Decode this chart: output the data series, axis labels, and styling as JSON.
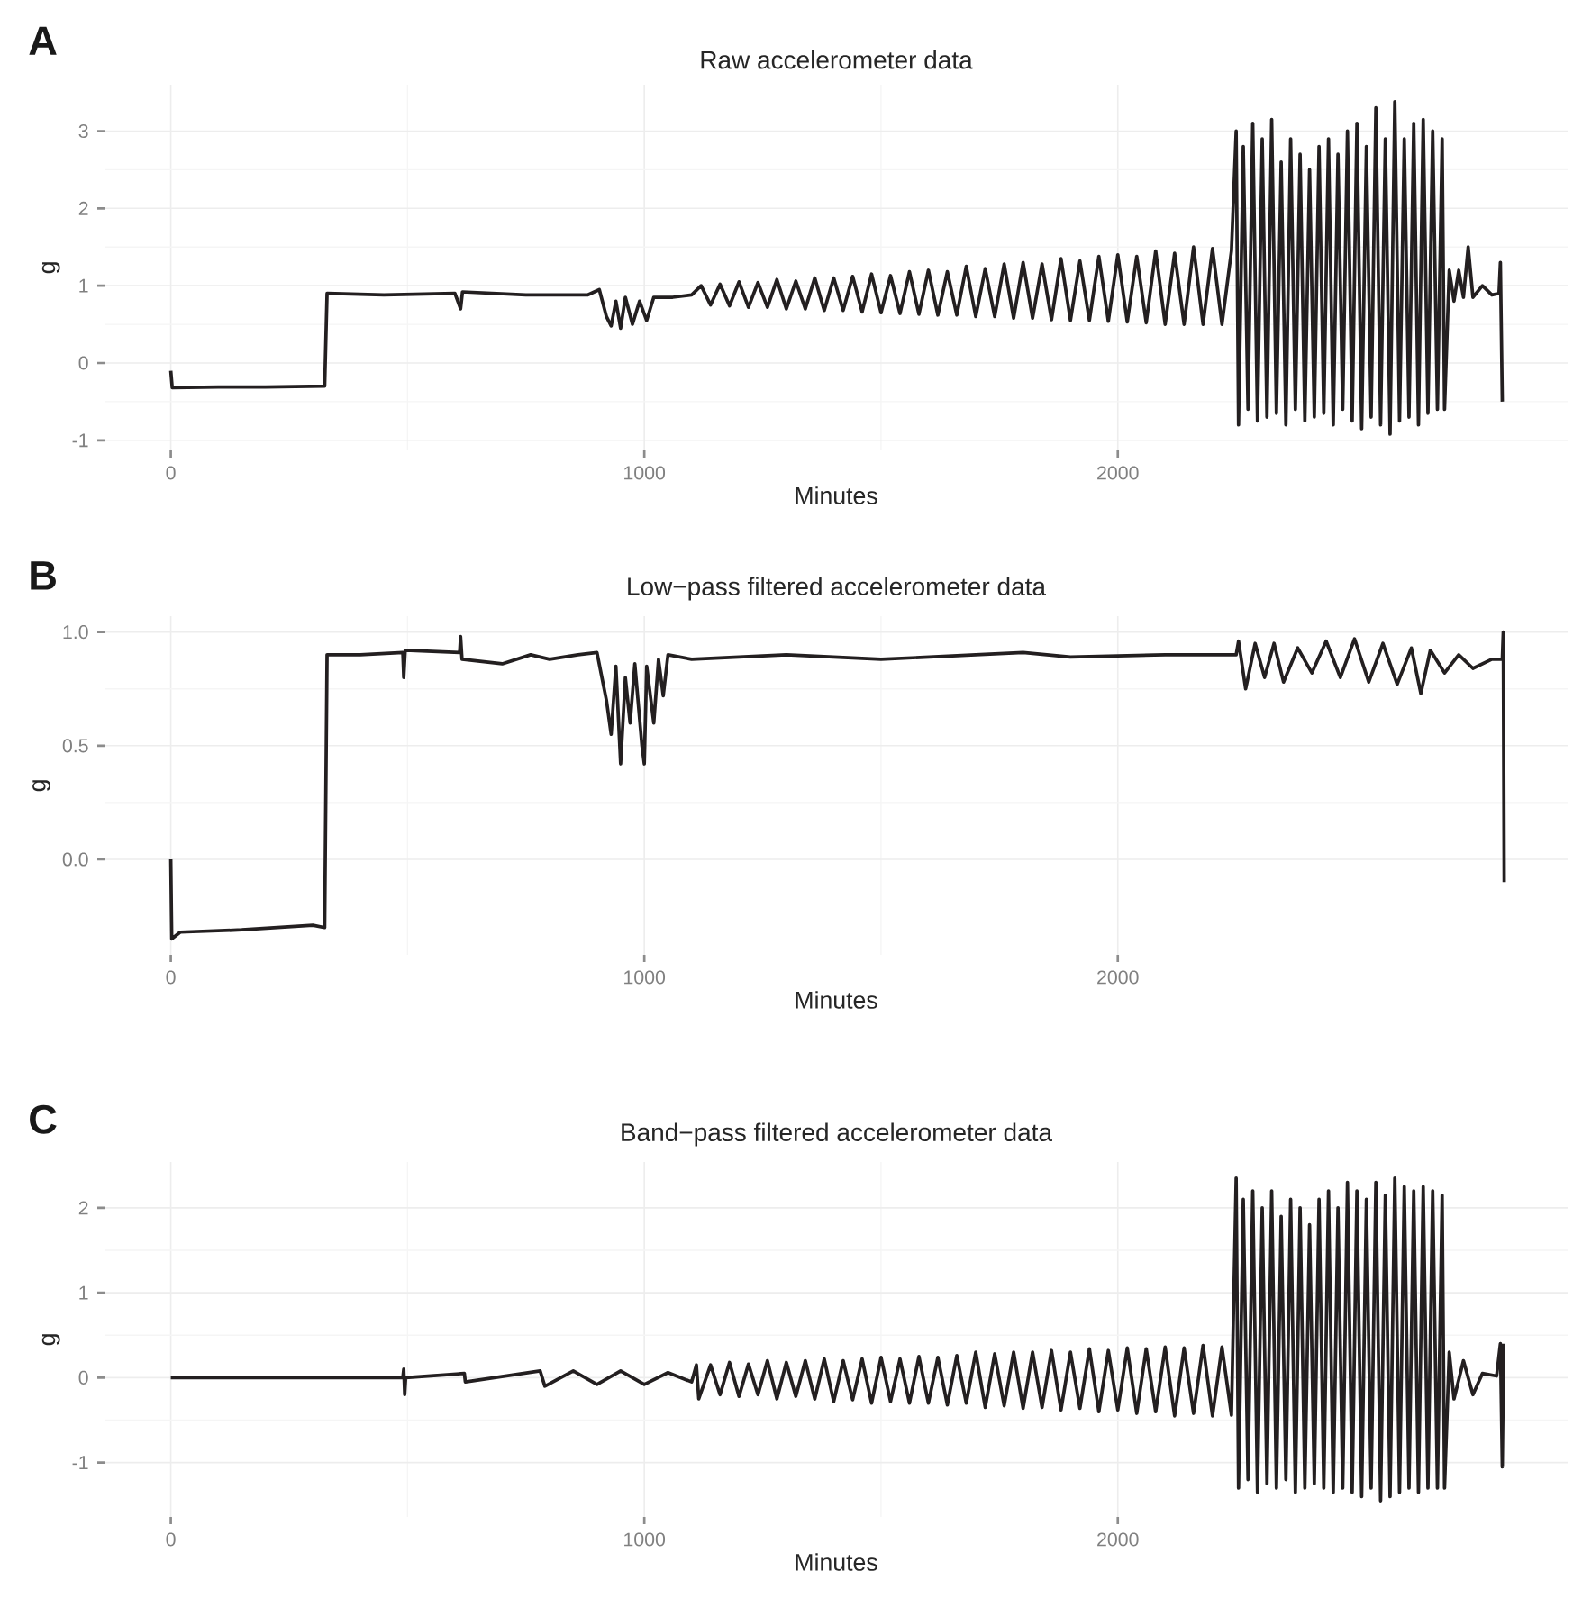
{
  "chart_data": [
    {
      "type": "line",
      "title": "Raw accelerometer data",
      "xlabel": "Minutes",
      "ylabel": "g",
      "annotations": [
        "A"
      ],
      "color": "#231f20",
      "grid": true,
      "xlim": [
        -140,
        2950
      ],
      "xticks": [
        0,
        1000,
        2000
      ],
      "ylim": [
        -1.13,
        3.6
      ],
      "yticks": [
        -1,
        0,
        1,
        2,
        3
      ],
      "x": [
        0,
        3,
        100,
        200,
        325,
        330,
        450,
        600,
        612,
        616,
        750,
        880,
        905,
        920,
        930,
        940,
        950,
        960,
        975,
        990,
        1005,
        1020,
        1060,
        1100,
        1120,
        1140,
        1160,
        1180,
        1200,
        1220,
        1240,
        1260,
        1280,
        1300,
        1320,
        1340,
        1360,
        1380,
        1400,
        1420,
        1440,
        1460,
        1480,
        1500,
        1520,
        1540,
        1560,
        1580,
        1600,
        1620,
        1640,
        1660,
        1680,
        1700,
        1720,
        1740,
        1760,
        1780,
        1800,
        1820,
        1840,
        1860,
        1880,
        1900,
        1920,
        1940,
        1960,
        1980,
        2000,
        2020,
        2040,
        2060,
        2080,
        2100,
        2120,
        2140,
        2160,
        2180,
        2200,
        2220,
        2240,
        2250,
        2255,
        2265,
        2275,
        2285,
        2295,
        2305,
        2315,
        2325,
        2335,
        2345,
        2355,
        2365,
        2375,
        2385,
        2395,
        2405,
        2415,
        2425,
        2435,
        2445,
        2455,
        2465,
        2475,
        2485,
        2495,
        2505,
        2515,
        2525,
        2535,
        2545,
        2555,
        2565,
        2575,
        2585,
        2595,
        2605,
        2615,
        2625,
        2635,
        2645,
        2655,
        2665,
        2675,
        2685,
        2690,
        2700,
        2710,
        2720,
        2730,
        2740,
        2750,
        2770,
        2790,
        2805,
        2808,
        2812
      ],
      "values": [
        -0.1,
        -0.32,
        -0.31,
        -0.31,
        -0.3,
        0.9,
        0.88,
        0.9,
        0.7,
        0.92,
        0.88,
        0.88,
        0.95,
        0.6,
        0.48,
        0.8,
        0.45,
        0.85,
        0.5,
        0.8,
        0.55,
        0.85,
        0.85,
        0.88,
        1.0,
        0.75,
        1.02,
        0.74,
        1.05,
        0.72,
        1.04,
        0.72,
        1.08,
        0.7,
        1.06,
        0.7,
        1.1,
        0.68,
        1.1,
        0.68,
        1.12,
        0.66,
        1.15,
        0.65,
        1.13,
        0.64,
        1.18,
        0.63,
        1.2,
        0.62,
        1.18,
        0.62,
        1.25,
        0.6,
        1.22,
        0.6,
        1.28,
        0.58,
        1.3,
        0.58,
        1.28,
        0.56,
        1.35,
        0.55,
        1.32,
        0.55,
        1.38,
        0.54,
        1.4,
        0.53,
        1.38,
        0.52,
        1.45,
        0.5,
        1.42,
        0.5,
        1.5,
        0.5,
        1.48,
        0.5,
        1.45,
        3.0,
        -0.8,
        2.8,
        -0.6,
        3.1,
        -0.75,
        2.9,
        -0.7,
        3.15,
        -0.65,
        2.6,
        -0.8,
        2.9,
        -0.6,
        2.7,
        -0.75,
        2.5,
        -0.7,
        2.8,
        -0.65,
        2.9,
        -0.8,
        2.7,
        -0.6,
        3.0,
        -0.75,
        3.1,
        -0.85,
        2.8,
        -0.7,
        3.3,
        -0.8,
        2.9,
        -0.92,
        3.38,
        -0.75,
        2.9,
        -0.7,
        3.1,
        -0.8,
        3.15,
        -0.65,
        3.0,
        -0.6,
        2.9,
        -0.6,
        1.2,
        0.8,
        1.2,
        0.85,
        1.5,
        0.85,
        1.0,
        0.88,
        0.9,
        1.3,
        -0.5
      ]
    },
    {
      "type": "line",
      "title": "Low−pass filtered accelerometer data",
      "xlabel": "Minutes",
      "ylabel": "g",
      "annotations": [
        "B"
      ],
      "color": "#231f20",
      "grid": true,
      "xlim": [
        -140,
        2950
      ],
      "xticks": [
        0,
        1000,
        2000
      ],
      "ylim": [
        -0.42,
        1.07
      ],
      "yticks": [
        {
          "value": 0,
          "label": "0.0"
        },
        {
          "value": 0.5,
          "label": "0.5"
        },
        {
          "value": 1,
          "label": "1.0"
        }
      ],
      "x": [
        0,
        2,
        20,
        150,
        300,
        325,
        330,
        400,
        490,
        492,
        495,
        610,
        612,
        615,
        700,
        760,
        800,
        860,
        900,
        920,
        930,
        940,
        950,
        960,
        970,
        980,
        995,
        1000,
        1005,
        1020,
        1030,
        1040,
        1050,
        1100,
        1300,
        1500,
        1700,
        1800,
        1900,
        2100,
        2250,
        2255,
        2270,
        2290,
        2310,
        2330,
        2350,
        2380,
        2410,
        2440,
        2470,
        2500,
        2530,
        2560,
        2590,
        2620,
        2640,
        2660,
        2690,
        2720,
        2750,
        2790,
        2812,
        2814,
        2816
      ],
      "values": [
        0,
        -0.35,
        -0.32,
        -0.31,
        -0.29,
        -0.3,
        0.9,
        0.9,
        0.91,
        0.8,
        0.92,
        0.91,
        0.98,
        0.88,
        0.86,
        0.9,
        0.88,
        0.9,
        0.91,
        0.7,
        0.55,
        0.85,
        0.42,
        0.8,
        0.6,
        0.86,
        0.5,
        0.42,
        0.85,
        0.6,
        0.88,
        0.72,
        0.9,
        0.88,
        0.9,
        0.88,
        0.9,
        0.91,
        0.89,
        0.9,
        0.9,
        0.96,
        0.75,
        0.95,
        0.8,
        0.95,
        0.78,
        0.93,
        0.82,
        0.96,
        0.8,
        0.97,
        0.78,
        0.95,
        0.77,
        0.93,
        0.73,
        0.92,
        0.82,
        0.9,
        0.84,
        0.88,
        0.88,
        1.0,
        -0.1
      ]
    },
    {
      "type": "line",
      "title": "Band−pass filtered accelerometer data",
      "xlabel": "Minutes",
      "ylabel": "g",
      "annotations": [
        "C"
      ],
      "color": "#231f20",
      "grid": true,
      "xlim": [
        -140,
        2950
      ],
      "xticks": [
        0,
        1000,
        2000
      ],
      "ylim": [
        -1.64,
        2.54
      ],
      "yticks": [
        -1,
        0,
        1,
        2
      ],
      "x": [
        0,
        300,
        490,
        492,
        494,
        496,
        620,
        622,
        780,
        790,
        850,
        900,
        950,
        1000,
        1050,
        1100,
        1110,
        1115,
        1140,
        1160,
        1180,
        1200,
        1220,
        1240,
        1260,
        1280,
        1300,
        1320,
        1340,
        1360,
        1380,
        1400,
        1420,
        1440,
        1460,
        1480,
        1500,
        1520,
        1540,
        1560,
        1580,
        1600,
        1620,
        1640,
        1660,
        1680,
        1700,
        1720,
        1740,
        1760,
        1780,
        1800,
        1820,
        1840,
        1860,
        1880,
        1900,
        1920,
        1940,
        1960,
        1980,
        2000,
        2020,
        2040,
        2060,
        2080,
        2100,
        2120,
        2140,
        2160,
        2180,
        2200,
        2220,
        2240,
        2250,
        2255,
        2265,
        2275,
        2285,
        2295,
        2305,
        2315,
        2325,
        2335,
        2345,
        2355,
        2365,
        2375,
        2385,
        2395,
        2405,
        2415,
        2425,
        2435,
        2445,
        2455,
        2465,
        2475,
        2485,
        2495,
        2505,
        2515,
        2525,
        2535,
        2545,
        2555,
        2565,
        2575,
        2585,
        2595,
        2605,
        2615,
        2625,
        2635,
        2645,
        2655,
        2665,
        2675,
        2685,
        2690,
        2700,
        2710,
        2730,
        2750,
        2770,
        2800,
        2808,
        2812,
        2815
      ],
      "values": [
        0,
        0,
        0,
        0.1,
        -0.2,
        0,
        0.05,
        -0.05,
        0.08,
        -0.1,
        0.08,
        -0.08,
        0.08,
        -0.08,
        0.06,
        -0.05,
        0.15,
        -0.25,
        0.15,
        -0.2,
        0.18,
        -0.22,
        0.16,
        -0.2,
        0.2,
        -0.25,
        0.18,
        -0.22,
        0.2,
        -0.25,
        0.22,
        -0.28,
        0.2,
        -0.26,
        0.22,
        -0.3,
        0.24,
        -0.28,
        0.22,
        -0.3,
        0.25,
        -0.3,
        0.24,
        -0.32,
        0.26,
        -0.3,
        0.3,
        -0.35,
        0.28,
        -0.33,
        0.3,
        -0.36,
        0.3,
        -0.35,
        0.32,
        -0.38,
        0.3,
        -0.36,
        0.34,
        -0.4,
        0.32,
        -0.38,
        0.35,
        -0.42,
        0.34,
        -0.4,
        0.36,
        -0.45,
        0.35,
        -0.42,
        0.38,
        -0.45,
        0.36,
        -0.44,
        2.35,
        -1.3,
        2.1,
        -1.2,
        2.2,
        -1.35,
        2.0,
        -1.25,
        2.2,
        -1.3,
        1.9,
        -1.2,
        2.1,
        -1.35,
        2.0,
        -1.3,
        1.8,
        -1.25,
        2.1,
        -1.3,
        2.2,
        -1.35,
        2.0,
        -1.3,
        2.3,
        -1.35,
        2.2,
        -1.4,
        2.1,
        -1.3,
        2.3,
        -1.45,
        2.15,
        -1.4,
        2.35,
        -1.35,
        2.25,
        -1.3,
        2.2,
        -1.35,
        2.25,
        -1.3,
        2.2,
        -1.3,
        2.15,
        -1.3,
        0.3,
        -0.25,
        0.2,
        -0.2,
        0.05,
        0.02,
        0.4,
        -1.05,
        0.4
      ]
    }
  ]
}
